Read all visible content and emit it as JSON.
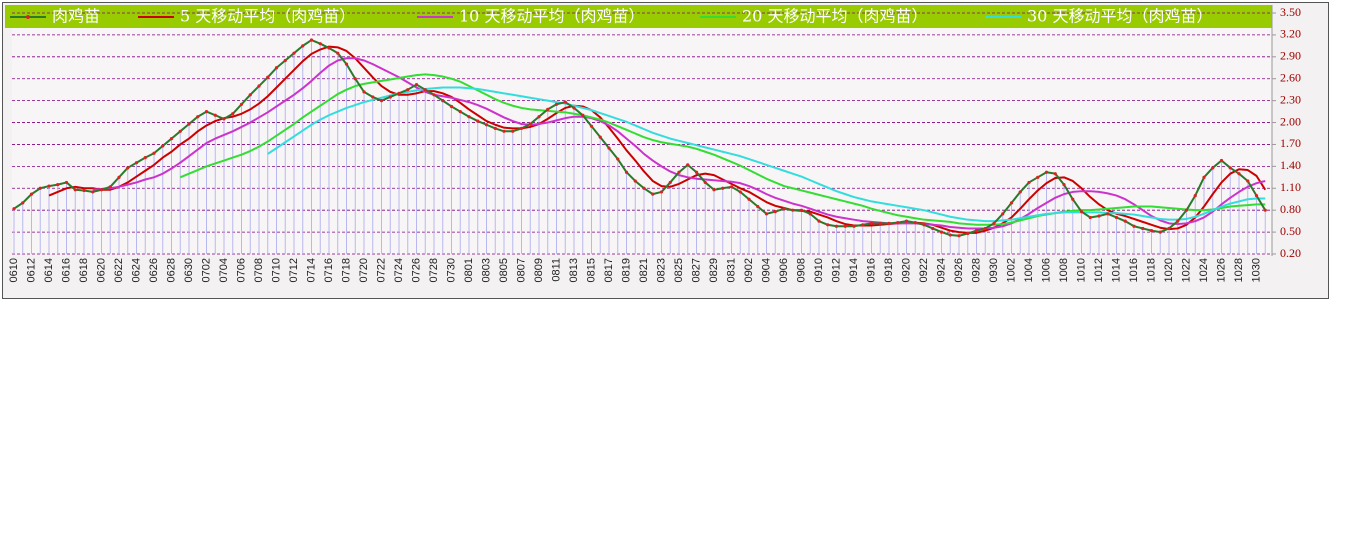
{
  "chart_data": {
    "type": "line",
    "legend": "top",
    "grid": true,
    "ylim": [
      0.2,
      3.5
    ],
    "yticks": [
      {
        "value": 0.2,
        "label": "0.20"
      },
      {
        "value": 0.5,
        "label": "0.50"
      },
      {
        "value": 0.8,
        "label": "0.80"
      },
      {
        "value": 1.1,
        "label": "1.10"
      },
      {
        "value": 1.4,
        "label": "1.40"
      },
      {
        "value": 1.7,
        "label": "1.70"
      },
      {
        "value": 2.0,
        "label": "2.00"
      },
      {
        "value": 2.3,
        "label": "2.30"
      },
      {
        "value": 2.6,
        "label": "2.60"
      },
      {
        "value": 2.9,
        "label": "2.90"
      },
      {
        "value": 3.2,
        "label": "3.20"
      },
      {
        "value": 3.5,
        "label": "3.50"
      }
    ],
    "categories": [
      "0610",
      null,
      "0612",
      null,
      "0614",
      null,
      "0616",
      null,
      "0618",
      null,
      "0620",
      null,
      "0622",
      null,
      "0624",
      null,
      "0626",
      null,
      "0628",
      null,
      "0630",
      null,
      "0702",
      null,
      "0704",
      null,
      "0706",
      null,
      "0708",
      null,
      "0710",
      null,
      "0712",
      null,
      "0714",
      null,
      "0716",
      null,
      "0718",
      null,
      "0720",
      null,
      "0722",
      null,
      "0724",
      null,
      "0726",
      null,
      "0728",
      null,
      "0730",
      null,
      "0801",
      null,
      "0803",
      null,
      "0805",
      null,
      "0807",
      null,
      "0809",
      null,
      "0811",
      null,
      "0813",
      null,
      "0815",
      null,
      "0817",
      null,
      "0819",
      null,
      "0821",
      null,
      "0823",
      null,
      "0825",
      null,
      "0827",
      null,
      "0829",
      null,
      "0831",
      null,
      "0902",
      null,
      "0904",
      null,
      "0906",
      null,
      "0908",
      null,
      "0910",
      null,
      "0912",
      null,
      "0914",
      null,
      "0916",
      null,
      "0918",
      null,
      "0920",
      null,
      "0922",
      null,
      "0924",
      null,
      "0926",
      null,
      "0928",
      null,
      "0930",
      null,
      "1002",
      null,
      "1004",
      null,
      "1006",
      null,
      "1008",
      null,
      "1010",
      null,
      "1012",
      null,
      "1014",
      null,
      "1016",
      null,
      "1018",
      null,
      "1020",
      null,
      "1022",
      null,
      "1024",
      null,
      "1026",
      null,
      "1028",
      null,
      "1030",
      null
    ],
    "series": [
      {
        "name": "肉鸡苗",
        "color": "#2a7a2a",
        "marker_color": "#dd2222",
        "drop_color": "#b8b8f0",
        "values": [
          0.82,
          0.9,
          1.02,
          1.1,
          1.13,
          1.15,
          1.18,
          1.08,
          1.07,
          1.05,
          1.08,
          1.12,
          1.25,
          1.38,
          1.45,
          1.52,
          1.58,
          1.68,
          1.78,
          1.88,
          1.98,
          2.08,
          2.15,
          2.1,
          2.05,
          2.12,
          2.25,
          2.38,
          2.5,
          2.62,
          2.75,
          2.85,
          2.95,
          3.05,
          3.13,
          3.08,
          3.02,
          2.95,
          2.8,
          2.6,
          2.42,
          2.35,
          2.3,
          2.35,
          2.4,
          2.45,
          2.52,
          2.45,
          2.38,
          2.3,
          2.22,
          2.15,
          2.08,
          2.02,
          1.97,
          1.92,
          1.88,
          1.88,
          1.92,
          1.98,
          2.08,
          2.18,
          2.25,
          2.28,
          2.2,
          2.1,
          1.95,
          1.8,
          1.65,
          1.5,
          1.32,
          1.2,
          1.1,
          1.02,
          1.05,
          1.18,
          1.32,
          1.42,
          1.32,
          1.18,
          1.08,
          1.1,
          1.12,
          1.05,
          0.95,
          0.85,
          0.75,
          0.78,
          0.82,
          0.8,
          0.8,
          0.75,
          0.65,
          0.6,
          0.58,
          0.58,
          0.58,
          0.6,
          0.62,
          0.62,
          0.62,
          0.63,
          0.65,
          0.63,
          0.6,
          0.55,
          0.5,
          0.46,
          0.45,
          0.48,
          0.52,
          0.55,
          0.62,
          0.75,
          0.9,
          1.05,
          1.18,
          1.25,
          1.32,
          1.3,
          1.15,
          0.95,
          0.78,
          0.7,
          0.72,
          0.75,
          0.7,
          0.65,
          0.58,
          0.55,
          0.52,
          0.5,
          0.55,
          0.65,
          0.8,
          1.0,
          1.25,
          1.38,
          1.48,
          1.38,
          1.3,
          1.2,
          1.0,
          0.8
        ]
      },
      {
        "name": "5 天移动平均（肉鸡苗）",
        "color": "#cc0000",
        "values": [
          null,
          null,
          null,
          null,
          1.0,
          1.05,
          1.1,
          1.12,
          1.1,
          1.1,
          1.08,
          1.08,
          1.12,
          1.18,
          1.26,
          1.34,
          1.42,
          1.52,
          1.6,
          1.7,
          1.78,
          1.88,
          1.96,
          2.02,
          2.06,
          2.08,
          2.12,
          2.18,
          2.26,
          2.36,
          2.48,
          2.6,
          2.72,
          2.84,
          2.94,
          3.0,
          3.04,
          3.03,
          2.98,
          2.88,
          2.75,
          2.62,
          2.5,
          2.42,
          2.38,
          2.38,
          2.4,
          2.43,
          2.43,
          2.4,
          2.35,
          2.27,
          2.18,
          2.1,
          2.02,
          1.97,
          1.93,
          1.92,
          1.92,
          1.94,
          1.98,
          2.05,
          2.13,
          2.2,
          2.23,
          2.22,
          2.17,
          2.07,
          1.93,
          1.78,
          1.62,
          1.48,
          1.33,
          1.2,
          1.13,
          1.12,
          1.16,
          1.22,
          1.28,
          1.3,
          1.28,
          1.22,
          1.16,
          1.1,
          1.05,
          0.98,
          0.91,
          0.86,
          0.83,
          0.8,
          0.79,
          0.78,
          0.74,
          0.7,
          0.65,
          0.61,
          0.59,
          0.59,
          0.59,
          0.6,
          0.61,
          0.62,
          0.63,
          0.63,
          0.62,
          0.6,
          0.56,
          0.52,
          0.5,
          0.49,
          0.49,
          0.52,
          0.56,
          0.62,
          0.7,
          0.82,
          0.95,
          1.07,
          1.17,
          1.24,
          1.25,
          1.2,
          1.1,
          0.98,
          0.88,
          0.8,
          0.75,
          0.72,
          0.68,
          0.64,
          0.6,
          0.56,
          0.54,
          0.55,
          0.6,
          0.7,
          0.85,
          1.02,
          1.18,
          1.3,
          1.36,
          1.35,
          1.27,
          1.08
        ]
      },
      {
        "name": "10 天移动平均（肉鸡苗）",
        "color": "#cc33cc",
        "values": [
          null,
          null,
          null,
          null,
          null,
          null,
          null,
          null,
          null,
          1.08,
          1.09,
          1.1,
          1.12,
          1.15,
          1.18,
          1.22,
          1.25,
          1.3,
          1.37,
          1.45,
          1.54,
          1.63,
          1.72,
          1.78,
          1.83,
          1.88,
          1.94,
          2.0,
          2.07,
          2.14,
          2.22,
          2.3,
          2.38,
          2.47,
          2.57,
          2.68,
          2.78,
          2.85,
          2.88,
          2.88,
          2.85,
          2.8,
          2.74,
          2.68,
          2.62,
          2.55,
          2.48,
          2.42,
          2.38,
          2.36,
          2.34,
          2.31,
          2.28,
          2.24,
          2.19,
          2.13,
          2.07,
          2.02,
          1.98,
          1.97,
          1.98,
          2.0,
          2.03,
          2.06,
          2.08,
          2.08,
          2.06,
          2.02,
          1.96,
          1.88,
          1.78,
          1.68,
          1.57,
          1.48,
          1.4,
          1.33,
          1.28,
          1.25,
          1.23,
          1.22,
          1.21,
          1.2,
          1.19,
          1.17,
          1.13,
          1.08,
          1.02,
          0.97,
          0.93,
          0.89,
          0.86,
          0.82,
          0.78,
          0.74,
          0.71,
          0.69,
          0.67,
          0.65,
          0.64,
          0.63,
          0.62,
          0.62,
          0.62,
          0.62,
          0.61,
          0.6,
          0.59,
          0.57,
          0.56,
          0.55,
          0.55,
          0.55,
          0.56,
          0.58,
          0.62,
          0.68,
          0.75,
          0.83,
          0.9,
          0.97,
          1.02,
          1.05,
          1.06,
          1.06,
          1.05,
          1.03,
          1.0,
          0.95,
          0.88,
          0.8,
          0.72,
          0.66,
          0.62,
          0.61,
          0.62,
          0.65,
          0.7,
          0.78,
          0.88,
          0.97,
          1.05,
          1.12,
          1.17,
          1.2
        ]
      },
      {
        "name": "20 天移动平均（肉鸡苗）",
        "color": "#33dd33",
        "values": [
          null,
          null,
          null,
          null,
          null,
          null,
          null,
          null,
          null,
          null,
          null,
          null,
          null,
          null,
          null,
          null,
          null,
          null,
          null,
          1.25,
          1.3,
          1.35,
          1.4,
          1.44,
          1.48,
          1.52,
          1.56,
          1.61,
          1.67,
          1.74,
          1.82,
          1.9,
          1.98,
          2.07,
          2.15,
          2.23,
          2.31,
          2.39,
          2.45,
          2.5,
          2.53,
          2.55,
          2.57,
          2.59,
          2.61,
          2.63,
          2.65,
          2.66,
          2.65,
          2.63,
          2.6,
          2.56,
          2.5,
          2.44,
          2.38,
          2.32,
          2.27,
          2.23,
          2.2,
          2.18,
          2.17,
          2.16,
          2.15,
          2.14,
          2.12,
          2.1,
          2.07,
          2.04,
          2.0,
          1.95,
          1.9,
          1.85,
          1.8,
          1.76,
          1.73,
          1.71,
          1.69,
          1.67,
          1.64,
          1.6,
          1.56,
          1.51,
          1.46,
          1.41,
          1.35,
          1.29,
          1.23,
          1.18,
          1.13,
          1.1,
          1.07,
          1.04,
          1.01,
          0.98,
          0.95,
          0.92,
          0.89,
          0.86,
          0.82,
          0.79,
          0.76,
          0.73,
          0.71,
          0.69,
          0.67,
          0.66,
          0.65,
          0.64,
          0.62,
          0.61,
          0.6,
          0.6,
          0.6,
          0.61,
          0.63,
          0.66,
          0.69,
          0.72,
          0.74,
          0.76,
          0.78,
          0.79,
          0.8,
          0.8,
          0.81,
          0.82,
          0.83,
          0.84,
          0.85,
          0.85,
          0.85,
          0.84,
          0.83,
          0.82,
          0.81,
          0.8,
          0.8,
          0.81,
          0.83,
          0.85,
          0.86,
          0.87,
          0.88,
          0.88
        ]
      },
      {
        "name": "30 天移动平均（肉鸡苗）",
        "color": "#33dddd",
        "values": [
          null,
          null,
          null,
          null,
          null,
          null,
          null,
          null,
          null,
          null,
          null,
          null,
          null,
          null,
          null,
          null,
          null,
          null,
          null,
          null,
          null,
          null,
          null,
          null,
          null,
          null,
          null,
          null,
          null,
          1.57,
          1.65,
          1.73,
          1.81,
          1.89,
          1.97,
          2.04,
          2.1,
          2.15,
          2.2,
          2.24,
          2.28,
          2.31,
          2.34,
          2.37,
          2.4,
          2.42,
          2.44,
          2.46,
          2.47,
          2.48,
          2.48,
          2.48,
          2.47,
          2.46,
          2.44,
          2.42,
          2.4,
          2.38,
          2.36,
          2.34,
          2.32,
          2.3,
          2.28,
          2.26,
          2.23,
          2.2,
          2.17,
          2.13,
          2.09,
          2.05,
          2.01,
          1.96,
          1.91,
          1.86,
          1.82,
          1.78,
          1.75,
          1.72,
          1.69,
          1.66,
          1.63,
          1.6,
          1.57,
          1.54,
          1.5,
          1.46,
          1.42,
          1.38,
          1.34,
          1.3,
          1.26,
          1.21,
          1.16,
          1.11,
          1.06,
          1.02,
          0.98,
          0.95,
          0.92,
          0.9,
          0.88,
          0.86,
          0.84,
          0.82,
          0.8,
          0.77,
          0.74,
          0.71,
          0.69,
          0.67,
          0.66,
          0.65,
          0.65,
          0.66,
          0.67,
          0.69,
          0.71,
          0.73,
          0.75,
          0.76,
          0.77,
          0.77,
          0.77,
          0.77,
          0.77,
          0.76,
          0.76,
          0.75,
          0.74,
          0.72,
          0.7,
          0.68,
          0.67,
          0.67,
          0.68,
          0.71,
          0.75,
          0.8,
          0.85,
          0.89,
          0.92,
          0.95,
          0.96,
          0.96
        ]
      }
    ]
  }
}
